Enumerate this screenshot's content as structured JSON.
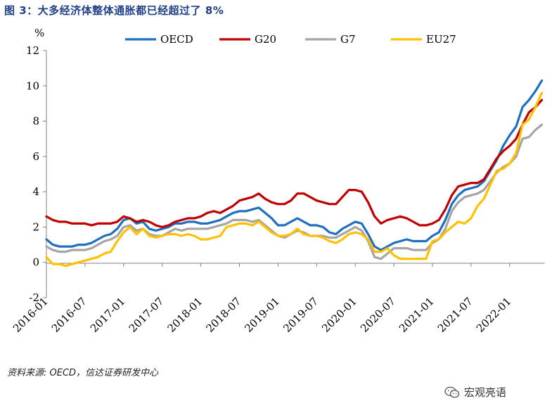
{
  "figure": {
    "title": "图 3：大多经济体整体通胀都已经超过了 8%",
    "source": "资料来源: OECD，信达证券研发中心",
    "watermark": "宏观亮语",
    "watermark_icon": "wechat-icon"
  },
  "chart_data": {
    "type": "line",
    "title": "",
    "xlabel": "",
    "ylabel": "%",
    "ylim": [
      -2,
      12
    ],
    "yticks": [
      -2,
      0,
      2,
      4,
      6,
      8,
      10,
      12
    ],
    "grid": false,
    "legend_position": "top",
    "x_tick_labels": [
      "2016-01",
      "2016-07",
      "2017-01",
      "2017-07",
      "2018-01",
      "2018-07",
      "2019-01",
      "2019-07",
      "2020-01",
      "2020-07",
      "2021-01",
      "2021-07",
      "2022-01"
    ],
    "x": [
      "2016-01",
      "2016-02",
      "2016-03",
      "2016-04",
      "2016-05",
      "2016-06",
      "2016-07",
      "2016-08",
      "2016-09",
      "2016-10",
      "2016-11",
      "2016-12",
      "2017-01",
      "2017-02",
      "2017-03",
      "2017-04",
      "2017-05",
      "2017-06",
      "2017-07",
      "2017-08",
      "2017-09",
      "2017-10",
      "2017-11",
      "2017-12",
      "2018-01",
      "2018-02",
      "2018-03",
      "2018-04",
      "2018-05",
      "2018-06",
      "2018-07",
      "2018-08",
      "2018-09",
      "2018-10",
      "2018-11",
      "2018-12",
      "2019-01",
      "2019-02",
      "2019-03",
      "2019-04",
      "2019-05",
      "2019-06",
      "2019-07",
      "2019-08",
      "2019-09",
      "2019-10",
      "2019-11",
      "2019-12",
      "2020-01",
      "2020-02",
      "2020-03",
      "2020-04",
      "2020-05",
      "2020-06",
      "2020-07",
      "2020-08",
      "2020-09",
      "2020-10",
      "2020-11",
      "2020-12",
      "2021-01",
      "2021-02",
      "2021-03",
      "2021-04",
      "2021-05",
      "2021-06",
      "2021-07",
      "2021-08",
      "2021-09",
      "2021-10",
      "2021-11",
      "2021-12",
      "2022-01",
      "2022-02",
      "2022-03",
      "2022-04",
      "2022-05",
      "2022-06"
    ],
    "series": [
      {
        "name": "OECD",
        "color": "#1f6fbf",
        "values": [
          1.3,
          1.0,
          0.9,
          0.9,
          0.9,
          1.0,
          1.0,
          1.1,
          1.3,
          1.5,
          1.6,
          1.9,
          2.4,
          2.5,
          2.2,
          2.3,
          1.9,
          1.8,
          1.9,
          2.0,
          2.2,
          2.2,
          2.3,
          2.3,
          2.2,
          2.2,
          2.3,
          2.4,
          2.6,
          2.8,
          2.9,
          2.9,
          3.0,
          3.1,
          2.8,
          2.5,
          2.1,
          2.1,
          2.3,
          2.5,
          2.3,
          2.1,
          2.1,
          2.0,
          1.7,
          1.6,
          1.9,
          2.1,
          2.3,
          2.2,
          1.6,
          0.9,
          0.7,
          0.9,
          1.1,
          1.2,
          1.3,
          1.2,
          1.2,
          1.2,
          1.5,
          1.7,
          2.4,
          3.3,
          3.8,
          4.1,
          4.2,
          4.3,
          4.6,
          5.2,
          5.8,
          6.6,
          7.2,
          7.7,
          8.8,
          9.2,
          9.7,
          10.3
        ]
      },
      {
        "name": "G20",
        "color": "#c00000",
        "values": [
          2.6,
          2.4,
          2.3,
          2.3,
          2.2,
          2.2,
          2.2,
          2.1,
          2.2,
          2.2,
          2.2,
          2.3,
          2.6,
          2.5,
          2.3,
          2.4,
          2.3,
          2.1,
          2.0,
          2.1,
          2.3,
          2.4,
          2.5,
          2.5,
          2.6,
          2.8,
          2.9,
          2.8,
          3.0,
          3.2,
          3.5,
          3.6,
          3.7,
          3.9,
          3.6,
          3.4,
          3.3,
          3.3,
          3.5,
          3.9,
          3.9,
          3.7,
          3.5,
          3.4,
          3.3,
          3.3,
          3.7,
          4.1,
          4.1,
          4.0,
          3.4,
          2.6,
          2.2,
          2.4,
          2.5,
          2.6,
          2.5,
          2.3,
          2.1,
          2.1,
          2.2,
          2.4,
          3.0,
          3.8,
          4.3,
          4.4,
          4.5,
          4.5,
          4.7,
          5.3,
          5.9,
          6.3,
          6.6,
          7.0,
          7.8,
          8.5,
          8.8,
          9.2
        ]
      },
      {
        "name": "G7",
        "color": "#a5a5a5",
        "values": [
          0.9,
          0.7,
          0.6,
          0.6,
          0.7,
          0.7,
          0.7,
          0.8,
          1.0,
          1.2,
          1.3,
          1.5,
          2.0,
          2.1,
          1.8,
          1.9,
          1.6,
          1.5,
          1.5,
          1.7,
          1.9,
          1.8,
          1.9,
          1.9,
          1.9,
          1.9,
          2.0,
          2.1,
          2.2,
          2.4,
          2.4,
          2.4,
          2.3,
          2.4,
          2.1,
          1.8,
          1.5,
          1.4,
          1.6,
          1.8,
          1.7,
          1.5,
          1.5,
          1.5,
          1.4,
          1.4,
          1.6,
          1.8,
          2.0,
          1.8,
          1.2,
          0.3,
          0.2,
          0.5,
          0.8,
          0.8,
          0.8,
          0.7,
          0.7,
          0.7,
          1.1,
          1.3,
          1.9,
          2.9,
          3.4,
          3.7,
          3.8,
          3.9,
          4.1,
          4.6,
          5.1,
          5.4,
          5.6,
          6.0,
          7.0,
          7.1,
          7.5,
          7.8
        ]
      },
      {
        "name": "EU27",
        "color": "#ffc000",
        "values": [
          0.3,
          -0.1,
          -0.1,
          -0.2,
          -0.1,
          0.0,
          0.1,
          0.2,
          0.3,
          0.5,
          0.6,
          1.2,
          1.7,
          2.0,
          1.6,
          1.9,
          1.5,
          1.4,
          1.5,
          1.6,
          1.6,
          1.5,
          1.6,
          1.5,
          1.3,
          1.3,
          1.4,
          1.5,
          2.0,
          2.1,
          2.2,
          2.2,
          2.1,
          2.3,
          2.0,
          1.7,
          1.5,
          1.5,
          1.6,
          1.9,
          1.6,
          1.5,
          1.5,
          1.4,
          1.2,
          1.1,
          1.3,
          1.6,
          1.7,
          1.6,
          1.3,
          0.6,
          0.6,
          0.8,
          0.4,
          0.2,
          0.2,
          0.2,
          0.2,
          0.2,
          1.2,
          1.3,
          1.7,
          2.0,
          2.3,
          2.2,
          2.5,
          3.2,
          3.6,
          4.4,
          5.2,
          5.3,
          5.6,
          6.2,
          7.8,
          8.1,
          8.8,
          9.6
        ]
      }
    ]
  }
}
